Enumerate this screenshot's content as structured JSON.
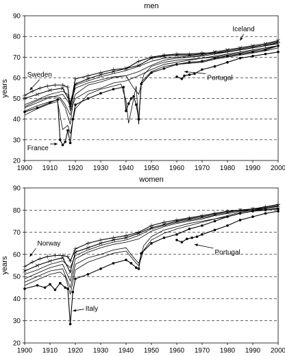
{
  "chart_data": [
    {
      "type": "line",
      "title": "men",
      "ylabel": "years",
      "xlabel": "",
      "xlim": [
        1900,
        2000
      ],
      "ylim": [
        20,
        90
      ],
      "xticks": [
        1900,
        1910,
        1920,
        1930,
        1940,
        1950,
        1960,
        1970,
        1980,
        1990,
        2000
      ],
      "yticks": [
        20,
        30,
        40,
        50,
        60,
        70,
        80,
        90
      ],
      "grid": "horizontal dashed",
      "annotations": [
        {
          "text": "Sweden",
          "x": 1901,
          "y": 60.5,
          "tx": 1902,
          "ty": 54
        },
        {
          "text": "Iceland",
          "x": 1982,
          "y": 82.5,
          "tx": 1985,
          "ty": 78
        },
        {
          "text": "Portugal",
          "x": 1972,
          "y": 59,
          "tx": 1963,
          "ty": 63
        },
        {
          "text": "France",
          "x": 1901,
          "y": 25,
          "tx": 1913,
          "ty": 28
        }
      ],
      "series": [
        {
          "marker": "plus",
          "x": [
            1900,
            1903,
            1906,
            1909,
            1912,
            1915,
            1917,
            1918,
            1920,
            1925,
            1930,
            1935,
            1940,
            1945,
            1950,
            1955,
            1960,
            1965,
            1970,
            1975,
            1980,
            1985,
            1990,
            1995,
            2000
          ],
          "values": [
            51.5,
            53.5,
            55,
            56,
            56.5,
            56.5,
            55.5,
            46,
            59.5,
            61,
            62.5,
            64,
            64.5,
            68,
            70,
            71,
            71.5,
            71.5,
            72,
            72,
            72.5,
            73.5,
            74.5,
            75.5,
            77
          ]
        },
        {
          "marker": "x",
          "x": [
            1900,
            1905,
            1910,
            1915,
            1918,
            1920,
            1925,
            1930,
            1935,
            1940,
            1945,
            1950,
            1955,
            1960,
            1965,
            1970,
            1975,
            1980,
            1985,
            1990,
            1995,
            2000
          ],
          "values": [
            50,
            52,
            54,
            55,
            48,
            57,
            59.5,
            61.5,
            63,
            64.5,
            66,
            69.5,
            70.5,
            71,
            71,
            71.5,
            72.5,
            73.5,
            74.5,
            75.5,
            76.5,
            78
          ]
        },
        {
          "marker": "filled-circle",
          "x": [
            1960,
            1962,
            1963,
            1965,
            1967,
            1970,
            1975,
            1980,
            1985,
            1990,
            1995,
            2000
          ],
          "values": [
            60.5,
            59.5,
            61,
            61.5,
            62,
            64,
            65.5,
            67.5,
            69.5,
            70.5,
            71.5,
            72.5
          ]
        },
        {
          "marker": "filled-circle",
          "x": [
            1900,
            1905,
            1910,
            1913,
            1914,
            1915,
            1916,
            1917,
            1918,
            1919,
            1920,
            1925,
            1930,
            1935,
            1939,
            1940,
            1941,
            1942,
            1943,
            1944,
            1945,
            1946,
            1950,
            1955,
            1960,
            1965,
            1970,
            1975,
            1980,
            1985,
            1990,
            1995,
            2000
          ],
          "values": [
            43.5,
            45.5,
            48,
            49.5,
            30,
            27.5,
            29,
            34.5,
            28.5,
            40,
            47,
            50,
            52.5,
            54.5,
            55.5,
            44,
            47.5,
            50,
            51,
            47,
            40,
            57,
            62.5,
            64.5,
            66.5,
            67.5,
            68,
            69.5,
            70.5,
            71.5,
            72.5,
            73.5,
            75.5
          ]
        },
        {
          "marker": "none",
          "x": [
            1900,
            1905,
            1910,
            1914,
            1916,
            1918,
            1919,
            1920,
            1925,
            1930,
            1935,
            1940,
            1945,
            1950,
            1955,
            1960,
            1965,
            1970,
            1975,
            1980,
            1985,
            1990,
            1995,
            2000
          ],
          "values": [
            46,
            49,
            51,
            50.5,
            47,
            42,
            48,
            52,
            56.5,
            58,
            60,
            61,
            63,
            66,
            68.5,
            69.5,
            70,
            70.5,
            71.5,
            72.5,
            73.5,
            74.5,
            75.5,
            76.5
          ]
        },
        {
          "marker": "none",
          "x": [
            1900,
            1905,
            1910,
            1914,
            1916,
            1918,
            1919,
            1920,
            1925,
            1930,
            1935,
            1940,
            1945,
            1950,
            1955,
            1960,
            1965,
            1970,
            1975,
            1980,
            1985,
            1990,
            1995,
            2000
          ],
          "values": [
            44,
            46.5,
            48.5,
            49.5,
            45.5,
            37.5,
            47,
            50,
            53.5,
            55,
            57.5,
            58.5,
            61,
            64,
            66.5,
            67.5,
            68.5,
            69.5,
            70.5,
            71.5,
            72.5,
            73.5,
            74.5,
            75.5
          ]
        },
        {
          "marker": "none",
          "x": [
            1900,
            1905,
            1910,
            1913,
            1915,
            1917,
            1918,
            1920,
            1925,
            1930,
            1935,
            1938,
            1940,
            1941,
            1942,
            1944,
            1945,
            1946,
            1950,
            1955,
            1960,
            1965,
            1970,
            1975,
            1980,
            1985,
            1990,
            1995,
            2000
          ],
          "values": [
            42,
            45,
            47.5,
            48.5,
            35,
            37,
            33,
            45,
            52,
            54.5,
            56,
            57,
            49,
            38,
            44,
            56,
            37.5,
            58,
            63,
            65.5,
            66.5,
            67,
            67.5,
            69,
            70,
            71,
            72,
            73,
            74.5
          ]
        },
        {
          "marker": "none",
          "x": [
            1900,
            1905,
            1910,
            1915,
            1917,
            1918,
            1920,
            1925,
            1930,
            1935,
            1940,
            1945,
            1950,
            1955,
            1960,
            1965,
            1970,
            1975,
            1980,
            1985,
            1990,
            1995,
            2000
          ],
          "values": [
            47,
            49.5,
            52,
            53.5,
            52,
            44,
            56.5,
            58.5,
            60.5,
            62,
            63.5,
            65.5,
            68,
            69.5,
            70,
            70.5,
            71,
            72,
            73,
            74,
            75,
            76,
            77.5
          ]
        },
        {
          "marker": "none",
          "x": [
            1900,
            1905,
            1910,
            1915,
            1918,
            1920,
            1925,
            1930,
            1935,
            1940,
            1943,
            1945,
            1947,
            1950,
            1955,
            1960,
            1965,
            1970,
            1975,
            1980,
            1985,
            1990,
            1995,
            2000
          ],
          "values": [
            45.5,
            48,
            50.5,
            52,
            47,
            55,
            57.5,
            59,
            60.5,
            61,
            55,
            52,
            61.5,
            65.5,
            67.5,
            68.5,
            69,
            69.5,
            70,
            71,
            72,
            73,
            74,
            75.5
          ]
        }
      ]
    },
    {
      "type": "line",
      "title": "women",
      "ylabel": "years",
      "xlabel": "",
      "xlim": [
        1900,
        2000
      ],
      "ylim": [
        20,
        90
      ],
      "xticks": [
        1900,
        1910,
        1920,
        1930,
        1940,
        1950,
        1960,
        1970,
        1980,
        1990,
        2000
      ],
      "yticks": [
        20,
        30,
        40,
        50,
        60,
        70,
        80,
        90
      ],
      "grid": "horizontal dashed",
      "annotations": [
        {
          "text": "Norway",
          "x": 1905,
          "y": 64,
          "tx": 1902,
          "ty": 59
        },
        {
          "text": "Portugal",
          "x": 1975,
          "y": 60,
          "tx": 1967,
          "ty": 64.5
        },
        {
          "text": "Italy",
          "x": 1924,
          "y": 34.5,
          "tx": 1919,
          "ty": 34.5
        }
      ],
      "series": [
        {
          "marker": "plus",
          "x": [
            1900,
            1903,
            1906,
            1909,
            1912,
            1915,
            1917,
            1918,
            1920,
            1925,
            1930,
            1935,
            1940,
            1945,
            1950,
            1955,
            1960,
            1965,
            1970,
            1975,
            1980,
            1985,
            1990,
            1995,
            2000
          ],
          "values": [
            54.5,
            56.5,
            58,
            59,
            59.5,
            59.5,
            59,
            57,
            62.5,
            65,
            66.5,
            67.5,
            68.5,
            70,
            73,
            74.5,
            75.5,
            76.5,
            77.5,
            78.5,
            79.5,
            80,
            80.5,
            81.5,
            82.5
          ]
        },
        {
          "marker": "x",
          "x": [
            1900,
            1905,
            1910,
            1915,
            1918,
            1920,
            1925,
            1930,
            1935,
            1940,
            1945,
            1950,
            1955,
            1960,
            1965,
            1970,
            1975,
            1980,
            1985,
            1990,
            1995,
            2000
          ],
          "values": [
            52.5,
            55,
            57,
            58.5,
            52,
            61,
            63,
            65,
            66.5,
            67.5,
            69.5,
            72,
            73.5,
            75,
            76,
            77,
            78,
            79,
            80,
            80.5,
            81,
            82
          ]
        },
        {
          "marker": "filled-circle",
          "x": [
            1960,
            1962,
            1964,
            1966,
            1968,
            1970,
            1975,
            1980,
            1985,
            1990,
            1995,
            2000
          ],
          "values": [
            66.5,
            65.5,
            67,
            67.5,
            68,
            69,
            71,
            73,
            75.5,
            77,
            78.5,
            79.5
          ]
        },
        {
          "marker": "filled-circle",
          "x": [
            1900,
            1905,
            1908,
            1910,
            1912,
            1914,
            1916,
            1917,
            1918,
            1919,
            1920,
            1925,
            1930,
            1935,
            1940,
            1942,
            1944,
            1945,
            1946,
            1950,
            1955,
            1960,
            1965,
            1970,
            1975,
            1980,
            1985,
            1990,
            1995,
            2000
          ],
          "values": [
            44.5,
            46,
            45,
            46.5,
            44,
            47,
            45,
            44.5,
            28.5,
            43,
            49,
            51,
            53.5,
            56,
            57.5,
            56,
            54,
            53.5,
            60.5,
            65,
            67.5,
            69,
            71.5,
            73,
            75,
            77,
            78.5,
            79.5,
            80,
            80.5
          ]
        },
        {
          "marker": "none",
          "x": [
            1900,
            1905,
            1910,
            1915,
            1918,
            1920,
            1925,
            1930,
            1935,
            1940,
            1945,
            1950,
            1955,
            1960,
            1965,
            1970,
            1975,
            1980,
            1985,
            1990,
            1995,
            2000
          ],
          "values": [
            49,
            51.5,
            54,
            55.5,
            48,
            58,
            61,
            63,
            64.5,
            65.5,
            67,
            70.5,
            72.5,
            74,
            75,
            76,
            77.5,
            78.5,
            79.5,
            80,
            81,
            81.5
          ]
        },
        {
          "marker": "none",
          "x": [
            1900,
            1905,
            1910,
            1915,
            1918,
            1920,
            1925,
            1930,
            1935,
            1940,
            1943,
            1945,
            1947,
            1950,
            1955,
            1960,
            1965,
            1970,
            1975,
            1980,
            1985,
            1990,
            1995,
            2000
          ],
          "values": [
            47.5,
            50,
            52.5,
            53.5,
            45,
            55.5,
            58.5,
            60,
            62,
            63,
            58.5,
            56,
            64,
            68,
            71,
            72.5,
            74,
            75,
            76,
            77.5,
            79,
            80,
            80.5,
            81
          ]
        },
        {
          "marker": "none",
          "x": [
            1900,
            1905,
            1910,
            1914,
            1916,
            1918,
            1920,
            1925,
            1930,
            1935,
            1940,
            1944,
            1945,
            1947,
            1950,
            1955,
            1960,
            1965,
            1970,
            1975,
            1980,
            1985,
            1990,
            1995,
            2000
          ],
          "values": [
            46,
            48.5,
            51,
            52,
            50,
            42,
            53,
            56.5,
            58.5,
            60.5,
            61.5,
            56,
            55,
            62,
            66.5,
            69.5,
            71.5,
            73,
            74.5,
            76,
            77,
            78.5,
            79.5,
            80.5,
            81
          ]
        },
        {
          "marker": "none",
          "x": [
            1900,
            1905,
            1910,
            1915,
            1918,
            1920,
            1925,
            1930,
            1935,
            1940,
            1945,
            1950,
            1955,
            1960,
            1965,
            1970,
            1975,
            1980,
            1985,
            1990,
            1995,
            2000
          ],
          "values": [
            51,
            53,
            55.5,
            57,
            54,
            59.5,
            62,
            64,
            65.5,
            66.5,
            68.5,
            71.5,
            73,
            74.5,
            75.5,
            76.5,
            77.5,
            78.5,
            79.5,
            80.5,
            81,
            82
          ]
        }
      ]
    }
  ]
}
